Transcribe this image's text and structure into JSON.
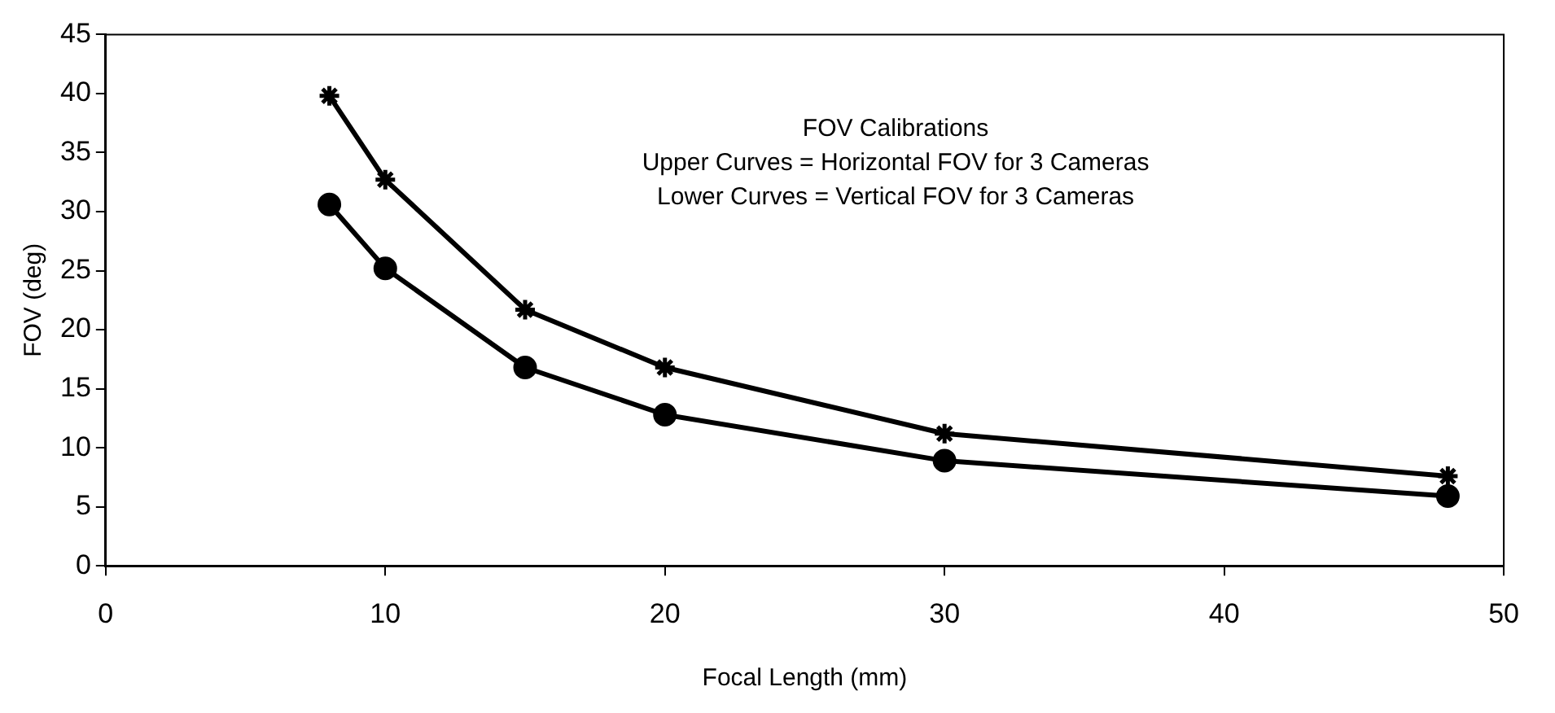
{
  "chart_data": {
    "type": "line",
    "xlabel": "Focal Length (mm)",
    "ylabel": "FOV (deg)",
    "annotations": [
      "FOV Calibrations",
      "Upper Curves = Horizontal FOV for 3 Cameras",
      "Lower Curves = Vertical FOV for 3 Cameras"
    ],
    "x": [
      8,
      10,
      15,
      20,
      30,
      48
    ],
    "series": [
      {
        "color": "#000000",
        "marker": "cross",
        "values": [
          39.8,
          32.7,
          21.7,
          16.8,
          11.2,
          7.6
        ]
      },
      {
        "color": "#000000",
        "marker": "circle",
        "values": [
          30.6,
          25.2,
          16.8,
          12.8,
          8.9,
          5.9
        ]
      }
    ],
    "xlim": [
      0,
      50
    ],
    "xticks": [
      0,
      10,
      20,
      30,
      40,
      50
    ],
    "ylim": [
      0,
      45
    ],
    "yticks": [
      0,
      5,
      10,
      15,
      20,
      25,
      30,
      35,
      40,
      45
    ],
    "grid": false,
    "legend": false,
    "line_style": "solid"
  }
}
